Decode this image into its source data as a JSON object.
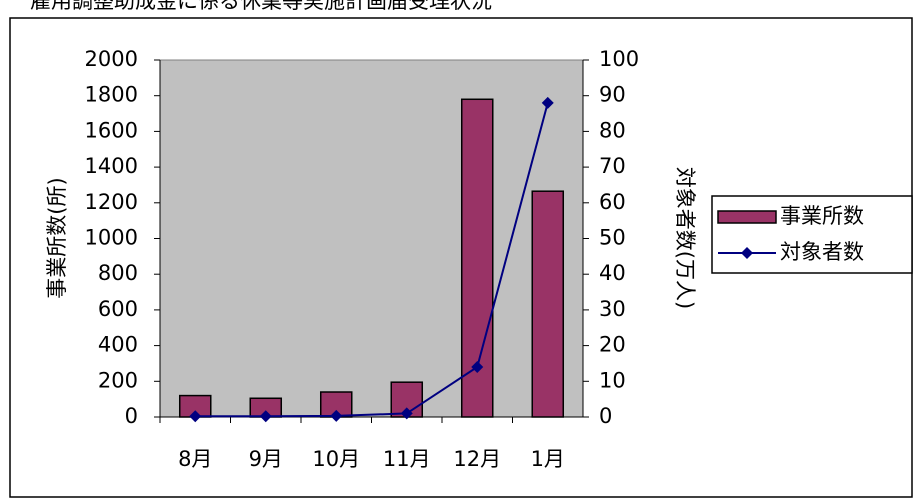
{
  "chart_data": {
    "type": "bar_line",
    "title": "雇用調整助成金に係る休業等実施計画届受理状況",
    "categories": [
      "8月",
      "9月",
      "10月",
      "11月",
      "12月",
      "1月"
    ],
    "series": [
      {
        "name": "事業所数",
        "color": "#993366",
        "type": "bar",
        "values": [
          120,
          105,
          140,
          195,
          1780,
          1265
        ]
      },
      {
        "name": "対象者数",
        "color": "#000080",
        "type": "line",
        "axis": "y2",
        "values": [
          0.2,
          0.2,
          0.3,
          1,
          14,
          88
        ]
      }
    ],
    "ylabel": "事業所数(所)",
    "y2label": "対象者数(万人)",
    "ylim": [
      0,
      2000
    ],
    "yticks": [
      0,
      200,
      400,
      600,
      800,
      1000,
      1200,
      1400,
      1600,
      1800,
      2000
    ],
    "y2lim": [
      0,
      100
    ],
    "y2ticks": [
      0,
      10,
      20,
      30,
      40,
      50,
      60,
      70,
      80,
      90,
      100
    ],
    "legend": "right"
  }
}
